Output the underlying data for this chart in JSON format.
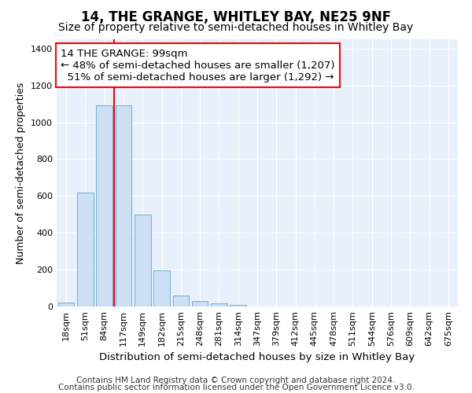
{
  "title": "14, THE GRANGE, WHITLEY BAY, NE25 9NF",
  "subtitle": "Size of property relative to semi-detached houses in Whitley Bay",
  "xlabel": "Distribution of semi-detached houses by size in Whitley Bay",
  "ylabel": "Number of semi-detached properties",
  "footnote1": "Contains HM Land Registry data © Crown copyright and database right 2024.",
  "footnote2": "Contains public sector information licensed under the Open Government Licence v3.0.",
  "bar_labels": [
    "18sqm",
    "51sqm",
    "84sqm",
    "117sqm",
    "149sqm",
    "182sqm",
    "215sqm",
    "248sqm",
    "281sqm",
    "314sqm",
    "347sqm",
    "379sqm",
    "412sqm",
    "445sqm",
    "478sqm",
    "511sqm",
    "544sqm",
    "576sqm",
    "609sqm",
    "642sqm",
    "675sqm"
  ],
  "bar_values": [
    20,
    620,
    1090,
    1090,
    500,
    195,
    60,
    28,
    15,
    10,
    0,
    0,
    0,
    0,
    0,
    0,
    0,
    0,
    0,
    0,
    0
  ],
  "bar_color": "#ccdff5",
  "bar_edge_color": "#6baed6",
  "vline_x": 3.0,
  "property_line_label": "14 THE GRANGE: 99sqm",
  "pct_smaller": 48,
  "n_smaller": 1207,
  "pct_larger": 51,
  "n_larger": 1292,
  "vline_color": "red",
  "ylim": [
    0,
    1450
  ],
  "background_color": "#e8f0fb",
  "grid_color": "white",
  "title_fontsize": 12,
  "subtitle_fontsize": 10,
  "annotation_fontsize": 9.5,
  "tick_fontsize": 8,
  "ylabel_fontsize": 9,
  "xlabel_fontsize": 9.5,
  "footnote_fontsize": 7.5
}
